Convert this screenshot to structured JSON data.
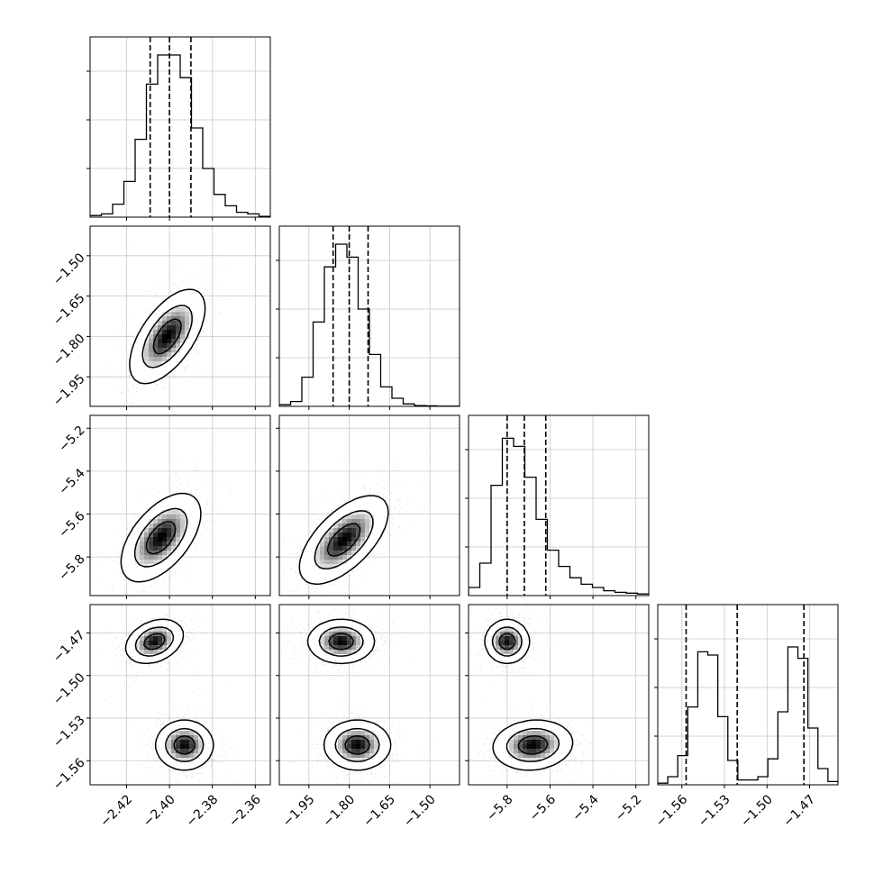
{
  "chart_data": {
    "type": "corner",
    "grid": true,
    "params": [
      {
        "range": [
          -2.437,
          -2.353
        ],
        "ticks": [
          -2.42,
          -2.4,
          -2.38,
          -2.36
        ],
        "tick_labels": [
          "−2.42",
          "−2.40",
          "−2.38",
          "−2.36"
        ],
        "quantiles": [
          -2.409,
          -2.4,
          -2.39
        ],
        "hist": [
          0.01,
          0.02,
          0.08,
          0.22,
          0.48,
          0.82,
          1.0,
          1.0,
          0.86,
          0.55,
          0.3,
          0.14,
          0.07,
          0.03,
          0.02,
          0.005
        ]
      },
      {
        "range": [
          -2.06,
          -1.39
        ],
        "ticks": [
          -1.95,
          -1.8,
          -1.65,
          -1.5
        ],
        "tick_labels": [
          "−1.95",
          "−1.80",
          "−1.65",
          "−1.50"
        ],
        "quantiles": [
          -1.86,
          -1.8,
          -1.73
        ],
        "hist": [
          0.01,
          0.03,
          0.18,
          0.52,
          0.86,
          1.0,
          0.92,
          0.6,
          0.32,
          0.12,
          0.05,
          0.015,
          0.005,
          0.003,
          0.001,
          0.001
        ]
      },
      {
        "range": [
          -5.98,
          -5.14
        ],
        "ticks": [
          -5.8,
          -5.6,
          -5.4,
          -5.2
        ],
        "tick_labels": [
          "−5.8",
          "−5.6",
          "−5.4",
          "−5.2"
        ],
        "quantiles": [
          -5.8,
          -5.72,
          -5.62
        ],
        "hist": [
          0.05,
          0.2,
          0.68,
          0.97,
          0.92,
          0.73,
          0.47,
          0.28,
          0.18,
          0.11,
          0.07,
          0.05,
          0.03,
          0.02,
          0.015,
          0.01
        ]
      },
      {
        "range": [
          -1.577,
          -1.45
        ],
        "ticks": [
          -1.56,
          -1.53,
          -1.5,
          -1.47
        ],
        "tick_labels": [
          "−1.56",
          "−1.53",
          "−1.50",
          "−1.47"
        ],
        "quantiles": [
          -1.557,
          -1.521,
          -1.474
        ],
        "hist": [
          0.01,
          0.05,
          0.18,
          0.48,
          0.82,
          0.8,
          0.42,
          0.15,
          0.03,
          0.03,
          0.05,
          0.16,
          0.45,
          0.85,
          0.78,
          0.35,
          0.1,
          0.02
        ]
      }
    ],
    "y_axes": [
      {
        "row": 1,
        "ticks": [
          -1.95,
          -1.8,
          -1.65,
          -1.5
        ],
        "tick_labels": [
          "−1.95",
          "−1.80",
          "−1.65",
          "−1.50"
        ]
      },
      {
        "row": 2,
        "ticks": [
          -5.8,
          -5.6,
          -5.4,
          -5.2
        ],
        "tick_labels": [
          "−5.8",
          "−5.6",
          "−5.4",
          "−5.2"
        ]
      },
      {
        "row": 3,
        "ticks": [
          -1.56,
          -1.53,
          -1.5,
          -1.47
        ],
        "tick_labels": [
          "−1.56",
          "−1.53",
          "−1.50",
          "−1.47"
        ]
      }
    ],
    "joint": [
      {
        "row": 1,
        "col": 0,
        "modes": [
          {
            "mx": -2.401,
            "my": -1.8,
            "sx": 0.0085,
            "sy": 0.085,
            "rho": 0.6
          }
        ]
      },
      {
        "row": 2,
        "col": 0,
        "modes": [
          {
            "mx": -2.404,
            "my": -5.71,
            "sx": 0.009,
            "sy": 0.1,
            "rho": 0.55
          }
        ]
      },
      {
        "row": 2,
        "col": 1,
        "modes": [
          {
            "mx": -1.82,
            "my": -5.72,
            "sx": 0.08,
            "sy": 0.1,
            "rho": 0.62
          }
        ]
      },
      {
        "row": 3,
        "col": 0,
        "modes": [
          {
            "mx": -2.407,
            "my": -1.476,
            "sx": 0.0065,
            "sy": 0.0075,
            "rho": 0.3
          },
          {
            "mx": -2.393,
            "my": -1.549,
            "sx": 0.0065,
            "sy": 0.0085,
            "rho": 0.0
          }
        ]
      },
      {
        "row": 3,
        "col": 1,
        "modes": [
          {
            "mx": -1.83,
            "my": -1.476,
            "sx": 0.06,
            "sy": 0.0075,
            "rho": 0.0
          },
          {
            "mx": -1.77,
            "my": -1.549,
            "sx": 0.06,
            "sy": 0.0085,
            "rho": 0.0
          }
        ]
      },
      {
        "row": 3,
        "col": 2,
        "modes": [
          {
            "mx": -5.8,
            "my": -1.476,
            "sx": 0.05,
            "sy": 0.0075,
            "rho": 0.0
          },
          {
            "mx": -5.68,
            "my": -1.549,
            "sx": 0.09,
            "sy": 0.0085,
            "rho": 0.1
          }
        ]
      }
    ],
    "contour_levels": [
      0.12,
      0.4,
      0.75
    ],
    "colors": {
      "line": "#000000",
      "grid": "#c8c8c8",
      "density": "#000000",
      "points": "#555555"
    }
  }
}
